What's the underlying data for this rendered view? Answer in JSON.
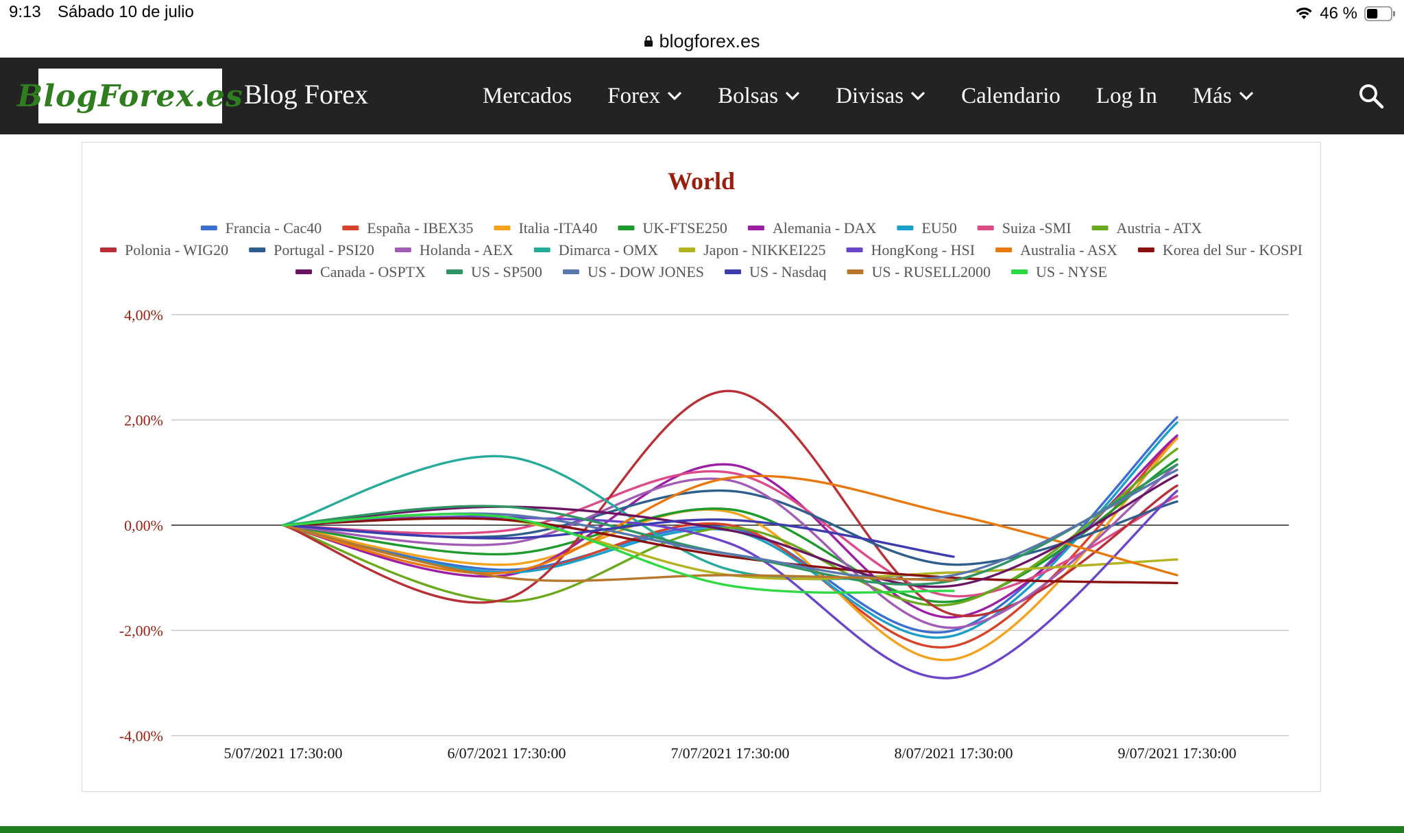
{
  "status_bar": {
    "time": "9:13",
    "date": "Sábado 10 de julio",
    "battery": "46 %",
    "battery_level": 0.46
  },
  "browser": {
    "url": "blogforex.es"
  },
  "nav": {
    "logo_text": "BlogForex.es",
    "site_title": "Blog Forex",
    "items": [
      {
        "label": "Mercados",
        "dropdown": false
      },
      {
        "label": "Forex",
        "dropdown": true
      },
      {
        "label": "Bolsas",
        "dropdown": true
      },
      {
        "label": "Divisas",
        "dropdown": true
      },
      {
        "label": "Calendario",
        "dropdown": false
      },
      {
        "label": "Log In",
        "dropdown": false
      },
      {
        "label": "Más",
        "dropdown": true
      }
    ]
  },
  "chart_data": {
    "type": "line",
    "title": "World",
    "x": [
      "5/07/2021 17:30:00",
      "6/07/2021 17:30:00",
      "7/07/2021 17:30:00",
      "8/07/2021 17:30:00",
      "9/07/2021 17:30:00"
    ],
    "y_ticks": [
      "4,00%",
      "2,00%",
      "0,00%",
      "-2,00%",
      "-4,00%"
    ],
    "ylim": [
      -4,
      4
    ],
    "grid": true,
    "legend_position": "top",
    "series": [
      {
        "name": "Francia - Cac40",
        "color": "#3a6fd0",
        "values": [
          0,
          -0.85,
          -0.05,
          -2.0,
          2.05
        ]
      },
      {
        "name": "España - IBEX35",
        "color": "#d9422a",
        "values": [
          0,
          -0.9,
          0.0,
          -2.3,
          1.7
        ]
      },
      {
        "name": "Italia -ITA40",
        "color": "#f4a21c",
        "values": [
          0,
          -0.75,
          0.25,
          -2.55,
          1.65
        ]
      },
      {
        "name": "UK-FTSE250",
        "color": "#1c9a2c",
        "values": [
          0,
          -0.55,
          0.3,
          -1.45,
          1.25
        ]
      },
      {
        "name": "Alemania - DAX",
        "color": "#9c1ea5",
        "values": [
          0,
          -0.95,
          1.15,
          -1.75,
          1.7
        ]
      },
      {
        "name": "EU50",
        "color": "#1aa0c8",
        "values": [
          0,
          -0.9,
          -0.1,
          -2.1,
          1.95
        ]
      },
      {
        "name": "Suiza -SMI",
        "color": "#dc4b87",
        "values": [
          0,
          -0.1,
          1.0,
          -1.35,
          0.55
        ]
      },
      {
        "name": "Austria - ATX",
        "color": "#6aa81c",
        "values": [
          0,
          -1.45,
          -0.05,
          -1.5,
          1.45
        ]
      },
      {
        "name": "Polonia - WIG20",
        "color": "#b83036",
        "values": [
          0,
          -1.4,
          2.55,
          -1.7,
          0.75
        ]
      },
      {
        "name": "Portugal - PSI20",
        "color": "#2e5f8c",
        "values": [
          0,
          -0.2,
          0.65,
          -0.75,
          0.45
        ]
      },
      {
        "name": "Holanda - AEX",
        "color": "#a35cb6",
        "values": [
          0,
          -0.35,
          0.85,
          -1.95,
          1.15
        ]
      },
      {
        "name": "Dimarca - OMX",
        "color": "#26aa9a",
        "values": [
          0,
          1.3,
          -0.85,
          -0.9,
          null
        ]
      },
      {
        "name": "Japon - NIKKEI225",
        "color": "#b3b321",
        "values": [
          0,
          0.1,
          -0.95,
          -0.9,
          -0.65
        ]
      },
      {
        "name": "HongKong - HSI",
        "color": "#6a44c9",
        "values": [
          0,
          0.15,
          -0.35,
          -2.9,
          0.65
        ]
      },
      {
        "name": "Australia - ASX",
        "color": "#e8780c",
        "values": [
          0,
          -0.9,
          0.9,
          0.2,
          -0.95
        ]
      },
      {
        "name": "Korea del Sur - KOSPI",
        "color": "#8a0f0f",
        "values": [
          0,
          0.1,
          -0.6,
          -1.0,
          -1.1
        ]
      },
      {
        "name": "Canada - OSPTX",
        "color": "#6a1464",
        "values": [
          0,
          0.35,
          -0.1,
          -1.15,
          0.95
        ]
      },
      {
        "name": "US - SP500",
        "color": "#2e9464",
        "values": [
          0,
          0.35,
          -0.55,
          -1.05,
          1.15
        ]
      },
      {
        "name": "US - DOW JONES",
        "color": "#5a77ad",
        "values": [
          0,
          0.2,
          -0.55,
          -0.95,
          1.05
        ]
      },
      {
        "name": "US - Nasdaq",
        "color": "#3d3bb0",
        "values": [
          0,
          -0.25,
          0.1,
          -0.6,
          null
        ]
      },
      {
        "name": "US - RUSELL2000",
        "color": "#b8782c",
        "values": [
          0,
          -1.0,
          -0.95,
          -1.05,
          null
        ]
      },
      {
        "name": "US - NYSE",
        "color": "#2fd943",
        "values": [
          0,
          0.15,
          -1.15,
          -1.25,
          null
        ]
      }
    ]
  }
}
